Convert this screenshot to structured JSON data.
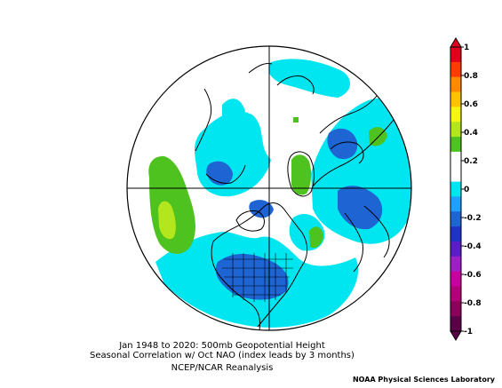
{
  "caption": {
    "line1": "Jan 1948 to 2020: 500mb Geopotential Height",
    "line2": "Seasonal Correlation w/ Oct NAO (index leads by 3 months)",
    "line3": "NCEP/NCAR Reanalysis"
  },
  "credit": "NOAA Physical Sciences Laboratory",
  "colorbar": {
    "labels": [
      "1",
      "0.8",
      "0.6",
      "0.4",
      "0.2",
      "0",
      "-0.2",
      "-0.4",
      "-0.6",
      "-0.8",
      "-1"
    ],
    "colors": [
      "#e0001e",
      "#ff3c00",
      "#ff8a00",
      "#ffc300",
      "#f5f514",
      "#b4e61e",
      "#4ec21e",
      "#ffffff",
      "#ffffff",
      "#00e6f0",
      "#1ea0ff",
      "#1e64d2",
      "#1e32c8",
      "#5a1ec8",
      "#a01ec8",
      "#c800a0",
      "#b40078",
      "#8c005a",
      "#5a0046"
    ]
  },
  "colors": {
    "positive_light": "#4ec21e",
    "positive_mid": "#b4e61e",
    "positive_high": "#f5f514",
    "negative_light": "#00e6f0",
    "negative_mid": "#1e64d2",
    "negative_dark": "#1e32c8"
  }
}
